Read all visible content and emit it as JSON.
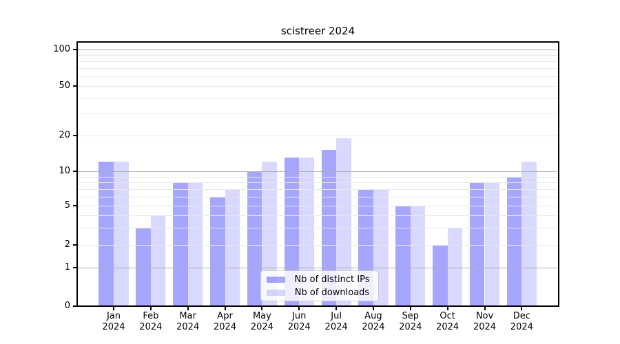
{
  "title": "scistreer 2024",
  "legend": {
    "items": [
      {
        "label": "Nb of distinct IPs",
        "color": "rgba(0,0,255,0.35)"
      },
      {
        "label": "Nb of downloads",
        "color": "rgba(0,0,255,0.15)"
      }
    ]
  },
  "chart_data": {
    "type": "bar",
    "title": "scistreer 2024",
    "categories": [
      "Jan 2024",
      "Feb 2024",
      "Mar 2024",
      "Apr 2024",
      "May 2024",
      "Jun 2024",
      "Jul 2024",
      "Aug 2024",
      "Sep 2024",
      "Oct 2024",
      "Nov 2024",
      "Dec 2024"
    ],
    "series": [
      {
        "name": "Nb of distinct IPs",
        "color": "rgba(0,0,255,0.35)",
        "values": [
          12,
          3,
          8,
          6,
          10,
          13,
          15,
          7,
          5,
          2,
          8,
          9
        ]
      },
      {
        "name": "Nb of downloads",
        "color": "rgba(0,0,255,0.15)",
        "values": [
          12,
          4,
          8,
          7,
          12,
          13,
          19,
          7,
          5,
          3,
          8,
          12
        ]
      }
    ],
    "xlabel": "",
    "ylabel": "",
    "yscale": "symlog",
    "ylim": [
      0,
      115
    ],
    "yticks": [
      0,
      1,
      2,
      5,
      10,
      20,
      50,
      100
    ],
    "major_gridlines": [
      1,
      10,
      100
    ],
    "minor_gridlines": [
      2,
      3,
      4,
      5,
      6,
      7,
      8,
      9,
      20,
      30,
      40,
      50,
      60,
      70,
      80,
      90
    ],
    "grid": true,
    "legend_position": "lower center"
  }
}
